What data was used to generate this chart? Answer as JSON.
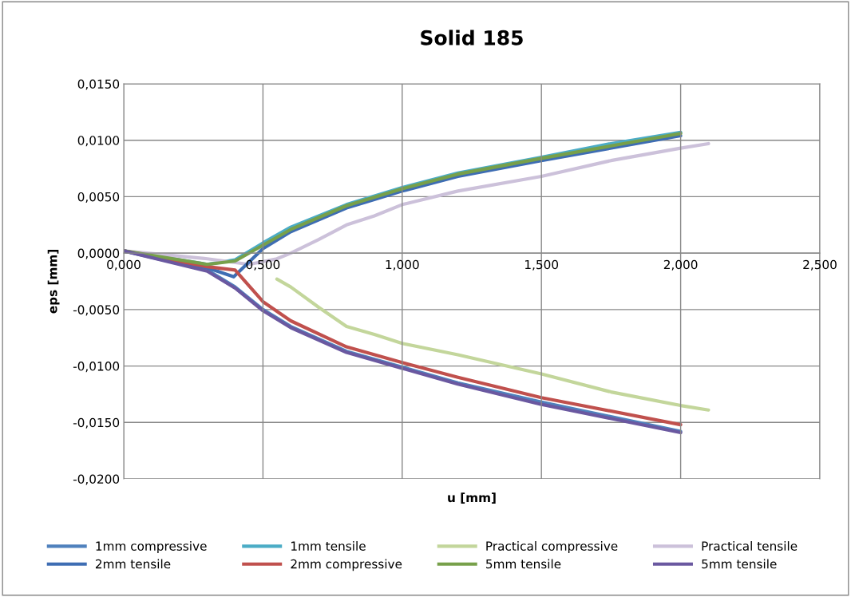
{
  "chart_data": {
    "type": "line",
    "title": "Solid 185",
    "xlabel": "u [mm]",
    "ylabel": "eps [mm]",
    "xlim": [
      0,
      2.5
    ],
    "ylim": [
      -0.02,
      0.015
    ],
    "xticks": [
      {
        "value": 0,
        "label": "0,000"
      },
      {
        "value": 0.5,
        "label": "0,500"
      },
      {
        "value": 1.0,
        "label": "1,000"
      },
      {
        "value": 1.5,
        "label": "1,500"
      },
      {
        "value": 2.0,
        "label": "2,000"
      },
      {
        "value": 2.5,
        "label": "2,500"
      }
    ],
    "yticks": [
      {
        "value": -0.02,
        "label": "-0,0200"
      },
      {
        "value": -0.015,
        "label": "-0,0150"
      },
      {
        "value": -0.01,
        "label": "-0,0100"
      },
      {
        "value": -0.005,
        "label": "-0,0050"
      },
      {
        "value": 0,
        "label": "0,0000"
      },
      {
        "value": 0.005,
        "label": "0,0050"
      },
      {
        "value": 0.01,
        "label": "0,0100"
      },
      {
        "value": 0.015,
        "label": "0,0150"
      }
    ],
    "grid": true,
    "legend": "bottom",
    "marker": "none",
    "line_style": "solid",
    "series": [
      {
        "name": "1mm compressive",
        "color": "#4f81bd",
        "x": [
          0,
          0.3,
          0.4,
          0.5,
          0.6,
          0.8,
          1.0,
          1.2,
          1.5,
          2.0
        ],
        "values": [
          0.0002,
          -0.0015,
          -0.003,
          -0.005,
          -0.0065,
          -0.0087,
          -0.0101,
          -0.0115,
          -0.0132,
          -0.0158
        ]
      },
      {
        "name": "1mm tensile",
        "color": "#4bacc6",
        "x": [
          0,
          0.3,
          0.4,
          0.5,
          0.6,
          0.8,
          1.0,
          1.2,
          1.5,
          1.75,
          2.0
        ],
        "values": [
          0.0002,
          -0.001,
          -0.0006,
          0.0009,
          0.0023,
          0.0043,
          0.0058,
          0.0071,
          0.0085,
          0.0097,
          0.0107
        ]
      },
      {
        "name": "Practical compressive",
        "color": "#c3d69b",
        "x": [
          0.55,
          0.6,
          0.7,
          0.8,
          0.9,
          1.0,
          1.2,
          1.5,
          1.75,
          2.0,
          2.1
        ],
        "values": [
          -0.0023,
          -0.003,
          -0.0048,
          -0.0065,
          -0.0072,
          -0.008,
          -0.009,
          -0.0107,
          -0.0123,
          -0.0135,
          -0.0139
        ]
      },
      {
        "name": "Practical tensile",
        "color": "#ccc1da",
        "x": [
          0,
          0.3,
          0.45,
          0.55,
          0.6,
          0.7,
          0.8,
          0.9,
          1.0,
          1.2,
          1.5,
          1.75,
          2.0,
          2.1
        ],
        "values": [
          0.0002,
          -0.0005,
          -0.001,
          -0.0005,
          0.0,
          0.0012,
          0.0025,
          0.0033,
          0.0043,
          0.0055,
          0.0068,
          0.0082,
          0.0093,
          0.0097
        ]
      },
      {
        "name": "2mm tensile",
        "color": "#3e6db3",
        "x": [
          0,
          0.3,
          0.395,
          0.5,
          0.6,
          0.8,
          1.0,
          1.2,
          1.5,
          2.0
        ],
        "values": [
          0.0002,
          -0.0013,
          -0.0021,
          0.0004,
          0.0019,
          0.004,
          0.0055,
          0.0068,
          0.0082,
          0.0104
        ]
      },
      {
        "name": "2mm compressive",
        "color": "#c0504d",
        "x": [
          0,
          0.3,
          0.4,
          0.5,
          0.6,
          0.8,
          1.0,
          1.2,
          1.5,
          2.0
        ],
        "values": [
          0.0002,
          -0.0012,
          -0.0015,
          -0.0043,
          -0.006,
          -0.0083,
          -0.0097,
          -0.011,
          -0.0128,
          -0.0152
        ]
      },
      {
        "name": "5mm tensile",
        "color": "#77a04a",
        "x": [
          0,
          0.3,
          0.4,
          0.5,
          0.6,
          0.8,
          1.0,
          1.2,
          1.5,
          1.75,
          2.0
        ],
        "values": [
          0.0002,
          -0.001,
          -0.0007,
          0.0007,
          0.0021,
          0.0042,
          0.0057,
          0.007,
          0.0084,
          0.0095,
          0.0106
        ]
      },
      {
        "name": "5mm tensile",
        "color": "#6a58a0",
        "x": [
          0,
          0.3,
          0.4,
          0.5,
          0.6,
          0.8,
          1.0,
          1.2,
          1.5,
          2.0
        ],
        "values": [
          0.0002,
          -0.0016,
          -0.0031,
          -0.0051,
          -0.0066,
          -0.0088,
          -0.0102,
          -0.0116,
          -0.0134,
          -0.0159
        ]
      }
    ]
  }
}
